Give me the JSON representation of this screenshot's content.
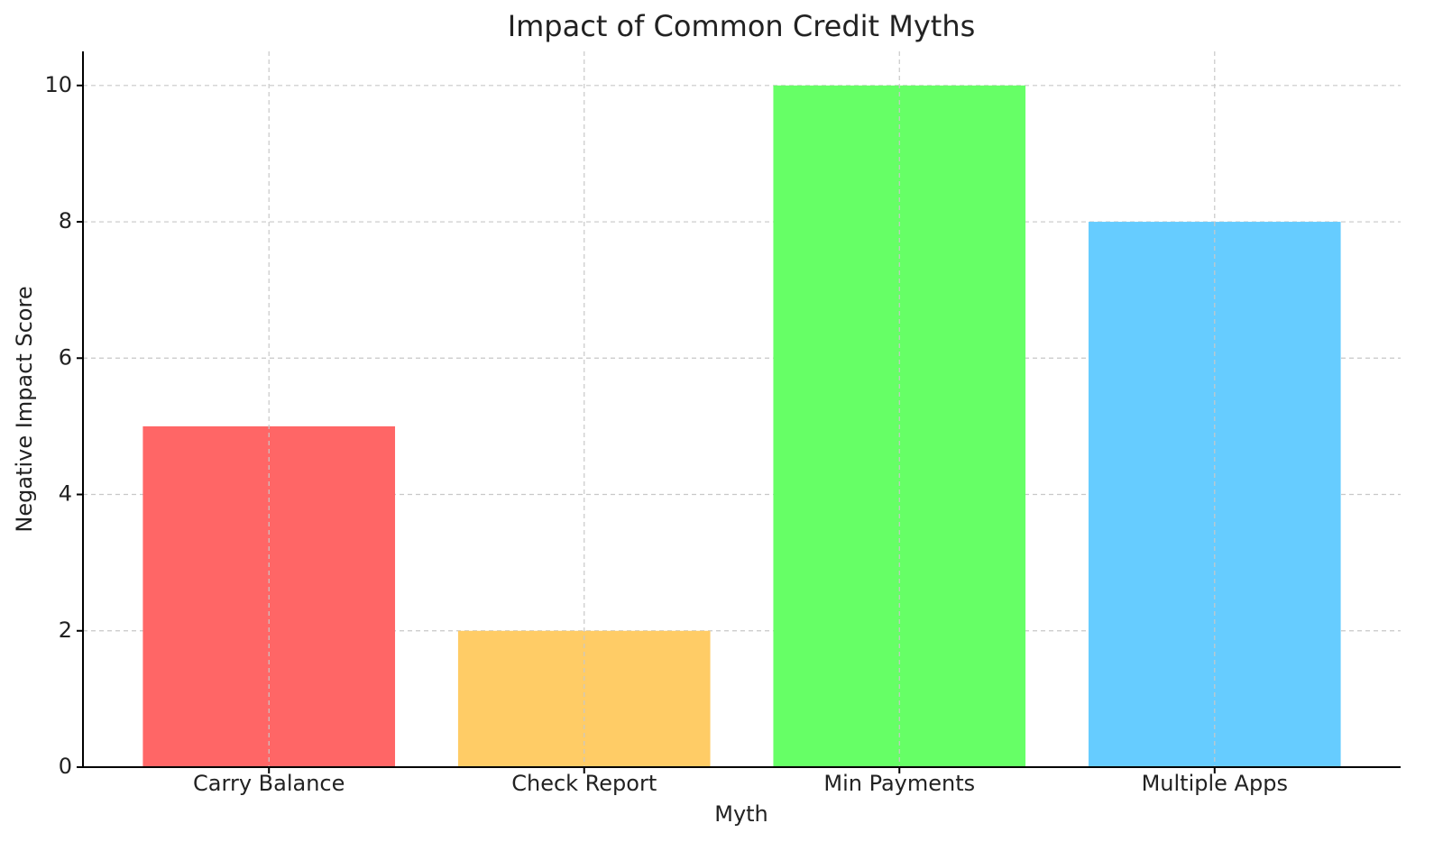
{
  "chart_data": {
    "type": "bar",
    "title": "Impact of Common Credit Myths",
    "x_label": "Myth",
    "y_label": "Negative Impact Score",
    "categories": [
      "Carry Balance",
      "Check Report",
      "Min Payments",
      "Multiple Apps"
    ],
    "values": [
      5,
      2,
      10,
      8
    ],
    "colors": [
      "#ff6666",
      "#ffcc66",
      "#66ff66",
      "#66ccff"
    ],
    "ylim": [
      0,
      10.5
    ],
    "yticks": [
      0,
      2,
      4,
      6,
      8,
      10
    ],
    "grid": true
  }
}
